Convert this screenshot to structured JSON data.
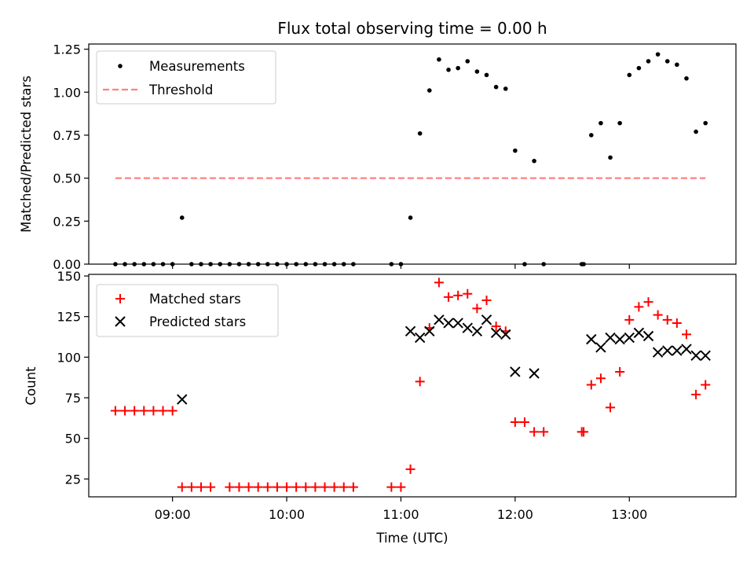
{
  "chart_data": [
    {
      "type": "scatter",
      "panel": "top",
      "title": "Flux total observing time = 0.00 h",
      "xlabel": "",
      "ylabel": "Matched/Predicted stars",
      "xlim": [
        "08:16",
        "13:56"
      ],
      "ylim": [
        0,
        1.28
      ],
      "yticks": [
        0.0,
        0.25,
        0.5,
        0.75,
        1.0,
        1.25
      ],
      "ytick_labels": [
        "0.00",
        "0.25",
        "0.50",
        "0.75",
        "1.00",
        "1.25"
      ],
      "legend": "top-left",
      "series": [
        {
          "name": "Measurements",
          "kind": "scatter",
          "marker": "dot",
          "color": "#000000",
          "x": [
            "08:30",
            "08:35",
            "08:40",
            "08:45",
            "08:50",
            "08:55",
            "09:00",
            "09:05",
            "09:10",
            "09:15",
            "09:20",
            "09:25",
            "09:30",
            "09:35",
            "09:40",
            "09:45",
            "09:50",
            "09:55",
            "10:00",
            "10:05",
            "10:10",
            "10:15",
            "10:20",
            "10:25",
            "10:30",
            "10:35",
            "10:55",
            "11:00",
            "11:05",
            "11:10",
            "11:15",
            "11:20",
            "11:25",
            "11:30",
            "11:35",
            "11:40",
            "11:45",
            "11:50",
            "11:55",
            "12:00",
            "12:05",
            "12:10",
            "12:15",
            "12:35",
            "12:36",
            "12:40",
            "12:45",
            "12:50",
            "12:55",
            "13:00",
            "13:05",
            "13:10",
            "13:15",
            "13:20",
            "13:25",
            "13:30",
            "13:35",
            "13:40"
          ],
          "y": [
            0,
            0,
            0,
            0,
            0,
            0,
            0,
            0.27,
            0,
            0,
            0,
            0,
            0,
            0,
            0,
            0,
            0,
            0,
            0,
            0,
            0,
            0,
            0,
            0,
            0,
            0,
            0,
            0,
            0.27,
            0.76,
            1.01,
            1.19,
            1.13,
            1.14,
            1.18,
            1.12,
            1.1,
            1.03,
            1.02,
            0.66,
            0,
            0.6,
            0,
            0,
            0,
            0.75,
            0.82,
            0.62,
            0.82,
            1.1,
            1.14,
            1.18,
            1.22,
            1.18,
            1.16,
            1.08,
            0.77,
            0.82
          ]
        },
        {
          "name": "Threshold",
          "kind": "line",
          "style": "dashed",
          "color": "#ff8080",
          "x": [
            "08:30",
            "13:40"
          ],
          "y": [
            0.5,
            0.5
          ]
        }
      ]
    },
    {
      "type": "scatter",
      "panel": "bottom",
      "xlabel": "Time (UTC)",
      "ylabel": "Count",
      "xlim": [
        "08:16",
        "13:56"
      ],
      "ylim": [
        14,
        151
      ],
      "xticks": [
        "09:00",
        "10:00",
        "11:00",
        "12:00",
        "13:00"
      ],
      "yticks": [
        25,
        50,
        75,
        100,
        125,
        150
      ],
      "ytick_labels": [
        "25",
        "50",
        "75",
        "100",
        "125",
        "150"
      ],
      "legend": "top-left",
      "series": [
        {
          "name": "Matched stars",
          "marker": "plus",
          "color": "#ff0000",
          "x": [
            "08:30",
            "08:35",
            "08:40",
            "08:45",
            "08:50",
            "08:55",
            "09:00",
            "09:05",
            "09:10",
            "09:15",
            "09:20",
            "09:30",
            "09:35",
            "09:40",
            "09:45",
            "09:50",
            "09:55",
            "10:00",
            "10:05",
            "10:10",
            "10:15",
            "10:20",
            "10:25",
            "10:30",
            "10:35",
            "10:55",
            "11:00",
            "11:05",
            "11:10",
            "11:15",
            "11:20",
            "11:25",
            "11:30",
            "11:35",
            "11:40",
            "11:45",
            "11:50",
            "11:55",
            "12:00",
            "12:05",
            "12:10",
            "12:15",
            "12:35",
            "12:36",
            "12:40",
            "12:45",
            "12:50",
            "12:55",
            "13:00",
            "13:05",
            "13:10",
            "13:15",
            "13:20",
            "13:25",
            "13:30",
            "13:35",
            "13:40"
          ],
          "y": [
            67,
            67,
            67,
            67,
            67,
            67,
            67,
            20,
            20,
            20,
            20,
            20,
            20,
            20,
            20,
            20,
            20,
            20,
            20,
            20,
            20,
            20,
            20,
            20,
            20,
            20,
            20,
            31,
            85,
            118,
            146,
            137,
            138,
            139,
            130,
            135,
            119,
            116,
            60,
            60,
            54,
            54,
            54,
            54,
            83,
            87,
            69,
            91,
            123,
            131,
            134,
            126,
            123,
            121,
            114,
            77,
            83
          ]
        },
        {
          "name": "Predicted stars",
          "marker": "x",
          "color": "#000000",
          "x": [
            "09:05",
            "11:05",
            "11:10",
            "11:15",
            "11:20",
            "11:25",
            "11:30",
            "11:35",
            "11:40",
            "11:45",
            "11:50",
            "11:55",
            "12:00",
            "12:10",
            "12:40",
            "12:45",
            "12:50",
            "12:55",
            "13:00",
            "13:05",
            "13:10",
            "13:15",
            "13:20",
            "13:25",
            "13:30",
            "13:35",
            "13:40"
          ],
          "y": [
            74,
            116,
            112,
            116,
            123,
            121,
            121,
            118,
            116,
            123,
            115,
            114,
            91,
            90,
            111,
            106,
            112,
            111,
            112,
            115,
            113,
            103,
            104,
            104,
            105,
            101,
            101
          ]
        }
      ]
    }
  ]
}
